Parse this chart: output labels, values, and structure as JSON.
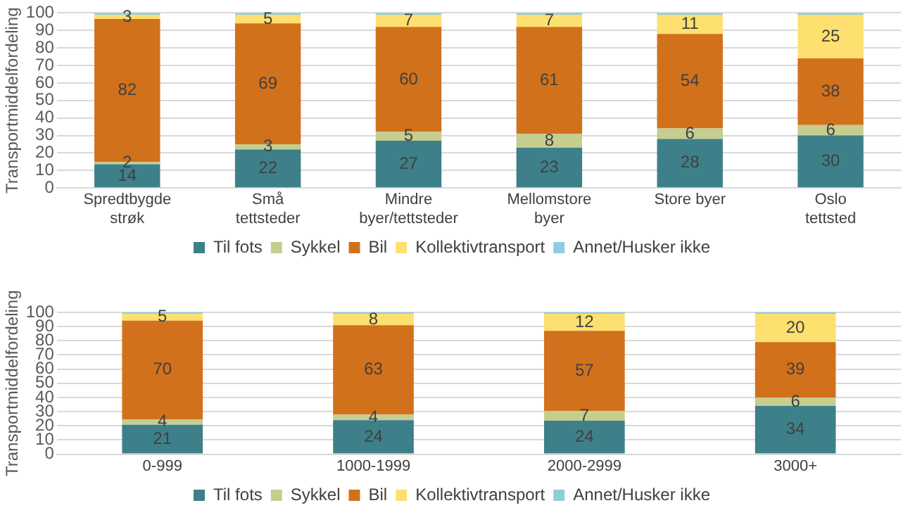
{
  "chart_data": [
    {
      "type": "bar",
      "stacked": true,
      "ylabel": "Transportmiddelfordeling",
      "categories": [
        "Spredtbygde strøk",
        "Små tettsteder",
        "Mindre byer/tettsteder",
        "Mellomstore byer",
        "Store byer",
        "Oslo tettsted"
      ],
      "ylim": [
        0,
        100
      ],
      "yticks": [
        0,
        10,
        20,
        30,
        40,
        50,
        60,
        70,
        80,
        90,
        100
      ],
      "grid": "y",
      "legend": "bottom",
      "series": [
        {
          "name": "Til fots",
          "color": "#3d8089",
          "values": [
            13.5,
            22,
            27,
            23,
            28,
            30
          ],
          "value_labels": [
            "14",
            "22",
            "27",
            "23",
            "28",
            "30"
          ]
        },
        {
          "name": "Sykkel",
          "color": "#c5cd8f",
          "values": [
            1.5,
            3,
            5,
            8,
            6,
            6
          ],
          "value_labels": [
            "2",
            "3",
            "5",
            "8",
            "6",
            "6"
          ]
        },
        {
          "name": "Bil",
          "color": "#d2711b",
          "values": [
            81.5,
            69,
            60,
            61,
            54,
            38
          ],
          "value_labels": [
            "82",
            "69",
            "60",
            "61",
            "54",
            "38"
          ]
        },
        {
          "name": "Kollektivtransport",
          "color": "#fde06f",
          "values": [
            2.5,
            5,
            7,
            7,
            11,
            25
          ],
          "value_labels": [
            "3",
            "5",
            "7",
            "7",
            "11",
            "25"
          ]
        },
        {
          "name": "Annet/Husker ikke",
          "color": "#8ecde0",
          "values": [
            1,
            1,
            1,
            1,
            1,
            1
          ]
        }
      ]
    },
    {
      "type": "bar",
      "stacked": true,
      "ylabel": "Transportmiddelfordeling",
      "categories": [
        "0-999",
        "1000-1999",
        "2000-2999",
        "3000+"
      ],
      "ylim": [
        0,
        100
      ],
      "yticks": [
        0,
        10,
        20,
        30,
        40,
        50,
        60,
        70,
        80,
        90,
        100
      ],
      "grid": "y",
      "legend": "bottom",
      "series": [
        {
          "name": "Til fots",
          "color": "#3d8089",
          "values": [
            20.8,
            24,
            23.6,
            34
          ],
          "value_labels": [
            "21",
            "24",
            "24",
            "34"
          ]
        },
        {
          "name": "Sykkel",
          "color": "#c5cd8f",
          "values": [
            3.8,
            4,
            6.8,
            6
          ],
          "value_labels": [
            "4",
            "4",
            "7",
            "6"
          ]
        },
        {
          "name": "Bil",
          "color": "#d2711b",
          "values": [
            69.6,
            63,
            56.6,
            39
          ],
          "value_labels": [
            "70",
            "63",
            "57",
            "39"
          ]
        },
        {
          "name": "Kollektivtransport",
          "color": "#fde06f",
          "values": [
            4.8,
            8,
            12,
            20
          ],
          "value_labels": [
            "5",
            "8",
            "12",
            "20"
          ]
        },
        {
          "name": "Annet/Husker ikke",
          "color": "#8ecde0",
          "values": [
            1,
            1,
            1,
            1
          ]
        }
      ]
    }
  ]
}
